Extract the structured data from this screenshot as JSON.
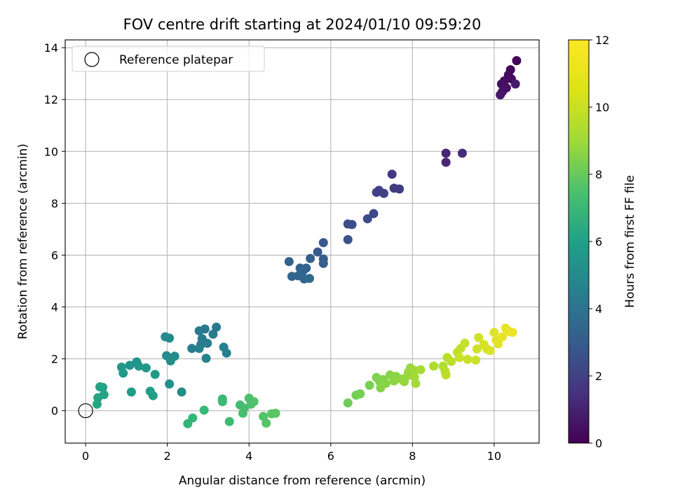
{
  "chart_data": {
    "type": "scatter",
    "title": "FOV centre drift starting at 2024/01/10 09:59:20",
    "xlabel": "Angular distance from reference (arcmin)",
    "ylabel": "Rotation from reference (arcmin)",
    "xlim": [
      -0.5,
      11.1
    ],
    "ylim": [
      -1.25,
      14.3
    ],
    "xticks": [
      "0",
      "2",
      "4",
      "6",
      "8",
      "10"
    ],
    "xtick_values": [
      0,
      2,
      4,
      6,
      8,
      10
    ],
    "yticks": [
      "0",
      "2",
      "4",
      "6",
      "8",
      "10",
      "12",
      "14"
    ],
    "ytick_values": [
      0,
      2,
      4,
      6,
      8,
      10,
      12,
      14
    ],
    "grid": true,
    "legend": {
      "placement": "top-left",
      "entries": [
        "Reference platepar"
      ]
    },
    "reference_point": {
      "x": 0,
      "y": 0,
      "label": "Reference platepar"
    },
    "colorbar": {
      "label": "Hours from first FF file",
      "range": [
        0,
        12
      ],
      "ticks": [
        "0",
        "2",
        "4",
        "6",
        "8",
        "10",
        "12"
      ],
      "tick_values": [
        0,
        2,
        4,
        6,
        8,
        10,
        12
      ],
      "colormap": "viridis"
    },
    "points": [
      [
        10.55,
        13.5,
        0.1
      ],
      [
        10.4,
        13.15,
        0.2
      ],
      [
        10.35,
        12.95,
        0.3
      ],
      [
        10.42,
        12.8,
        0.35
      ],
      [
        10.25,
        12.72,
        0.4
      ],
      [
        10.18,
        12.6,
        0.5
      ],
      [
        10.3,
        12.45,
        0.6
      ],
      [
        10.2,
        12.3,
        0.7
      ],
      [
        10.15,
        12.18,
        0.8
      ],
      [
        10.52,
        12.6,
        0.9
      ],
      [
        8.82,
        9.93,
        1.2
      ],
      [
        8.82,
        9.58,
        1.3
      ],
      [
        9.22,
        9.93,
        1.5
      ],
      [
        7.5,
        9.12,
        2.0
      ],
      [
        7.55,
        8.58,
        2.1
      ],
      [
        7.68,
        8.55,
        2.2
      ],
      [
        7.18,
        8.5,
        2.3
      ],
      [
        7.12,
        8.42,
        2.35
      ],
      [
        7.3,
        8.38,
        2.4
      ],
      [
        7.05,
        7.6,
        2.6
      ],
      [
        6.9,
        7.4,
        2.7
      ],
      [
        6.42,
        7.2,
        2.8
      ],
      [
        6.52,
        7.18,
        2.9
      ],
      [
        6.42,
        6.6,
        3.0
      ],
      [
        5.82,
        6.48,
        3.3
      ],
      [
        5.68,
        6.12,
        3.4
      ],
      [
        5.82,
        5.85,
        3.5
      ],
      [
        5.82,
        5.68,
        3.55
      ],
      [
        5.5,
        5.87,
        3.6
      ],
      [
        4.98,
        5.75,
        3.7
      ],
      [
        5.25,
        5.5,
        3.75
      ],
      [
        5.4,
        5.5,
        3.8
      ],
      [
        5.32,
        5.38,
        3.85
      ],
      [
        5.05,
        5.18,
        3.9
      ],
      [
        5.2,
        5.2,
        3.95
      ],
      [
        5.35,
        5.08,
        4.0
      ],
      [
        5.48,
        5.1,
        4.1
      ],
      [
        3.2,
        3.22,
        4.8
      ],
      [
        2.92,
        3.15,
        4.85
      ],
      [
        2.78,
        3.08,
        4.9
      ],
      [
        3.12,
        2.95,
        4.95
      ],
      [
        2.85,
        2.78,
        5.0
      ],
      [
        2.82,
        2.55,
        5.1
      ],
      [
        2.98,
        2.6,
        5.15
      ],
      [
        2.6,
        2.4,
        5.2
      ],
      [
        2.78,
        2.4,
        5.25
      ],
      [
        3.38,
        2.45,
        5.3
      ],
      [
        3.45,
        2.22,
        5.35
      ],
      [
        2.95,
        2.02,
        5.4
      ],
      [
        1.95,
        2.85,
        5.7
      ],
      [
        2.05,
        2.8,
        5.75
      ],
      [
        1.98,
        2.12,
        5.8
      ],
      [
        2.18,
        2.1,
        5.85
      ],
      [
        2.08,
        1.92,
        5.9
      ],
      [
        2.35,
        0.72,
        5.95
      ],
      [
        2.05,
        1.03,
        6.0
      ],
      [
        1.25,
        1.88,
        6.2
      ],
      [
        1.08,
        1.75,
        6.25
      ],
      [
        1.3,
        1.72,
        6.3
      ],
      [
        0.88,
        1.68,
        6.35
      ],
      [
        1.48,
        1.65,
        6.4
      ],
      [
        0.92,
        1.45,
        6.45
      ],
      [
        1.7,
        1.4,
        6.5
      ],
      [
        1.12,
        0.72,
        6.6
      ],
      [
        1.58,
        0.75,
        6.65
      ],
      [
        1.65,
        0.58,
        6.7
      ],
      [
        0.35,
        0.92,
        6.9
      ],
      [
        0.42,
        0.9,
        6.95
      ],
      [
        0.45,
        0.62,
        7.0
      ],
      [
        0.3,
        0.5,
        7.05
      ],
      [
        0.28,
        0.25,
        7.1
      ],
      [
        2.5,
        -0.5,
        7.9
      ],
      [
        2.62,
        -0.28,
        8.0
      ],
      [
        2.9,
        0.02,
        8.05
      ],
      [
        3.35,
        0.45,
        8.1
      ],
      [
        3.35,
        0.35,
        8.15
      ],
      [
        3.52,
        -0.42,
        8.2
      ],
      [
        3.78,
        0.22,
        8.3
      ],
      [
        3.88,
        0.1,
        8.35
      ],
      [
        3.85,
        -0.1,
        8.4
      ],
      [
        4.0,
        0.48,
        8.5
      ],
      [
        4.05,
        0.25,
        8.55
      ],
      [
        4.12,
        0.35,
        8.6
      ],
      [
        4.35,
        -0.22,
        8.7
      ],
      [
        4.42,
        -0.48,
        8.75
      ],
      [
        4.55,
        -0.12,
        8.8
      ],
      [
        4.65,
        -0.1,
        8.85
      ],
      [
        6.42,
        0.3,
        9.3
      ],
      [
        6.62,
        0.6,
        9.4
      ],
      [
        6.72,
        0.65,
        9.45
      ],
      [
        6.95,
        0.98,
        9.5
      ],
      [
        7.12,
        1.28,
        9.6
      ],
      [
        7.2,
        1.12,
        9.65
      ],
      [
        7.28,
        1.2,
        9.7
      ],
      [
        7.22,
        0.88,
        9.75
      ],
      [
        7.35,
        1.05,
        9.8
      ],
      [
        7.45,
        1.38,
        9.85
      ],
      [
        7.6,
        1.32,
        9.9
      ],
      [
        7.55,
        1.15,
        9.95
      ],
      [
        7.72,
        1.22,
        10.0
      ],
      [
        7.8,
        1.12,
        10.05
      ],
      [
        7.88,
        1.35,
        10.1
      ],
      [
        7.9,
        1.48,
        10.15
      ],
      [
        7.95,
        1.65,
        10.2
      ],
      [
        8.05,
        1.55,
        10.25
      ],
      [
        8.05,
        1.3,
        10.3
      ],
      [
        8.08,
        1.05,
        10.35
      ],
      [
        8.2,
        1.58,
        10.4
      ],
      [
        8.52,
        1.72,
        10.5
      ],
      [
        8.75,
        1.72,
        10.6
      ],
      [
        8.8,
        1.52,
        10.65
      ],
      [
        8.85,
        2.05,
        10.7
      ],
      [
        8.82,
        1.38,
        10.75
      ],
      [
        8.95,
        1.9,
        10.8
      ],
      [
        9.1,
        2.25,
        10.85
      ],
      [
        9.18,
        2.4,
        10.9
      ],
      [
        9.28,
        2.6,
        10.95
      ],
      [
        9.35,
        1.98,
        11.0
      ],
      [
        9.15,
        2.05,
        11.05
      ],
      [
        9.55,
        1.95,
        11.1
      ],
      [
        9.58,
        2.38,
        11.15
      ],
      [
        9.62,
        2.82,
        11.2
      ],
      [
        9.75,
        2.55,
        11.25
      ],
      [
        9.82,
        2.38,
        11.3
      ],
      [
        9.9,
        2.32,
        11.35
      ],
      [
        10.0,
        3.02,
        11.4
      ],
      [
        10.05,
        2.72,
        11.45
      ],
      [
        10.1,
        2.58,
        11.5
      ],
      [
        10.2,
        2.85,
        11.55
      ],
      [
        10.28,
        3.18,
        11.6
      ],
      [
        10.38,
        3.05,
        11.65
      ],
      [
        10.45,
        3.02,
        11.7
      ]
    ]
  }
}
